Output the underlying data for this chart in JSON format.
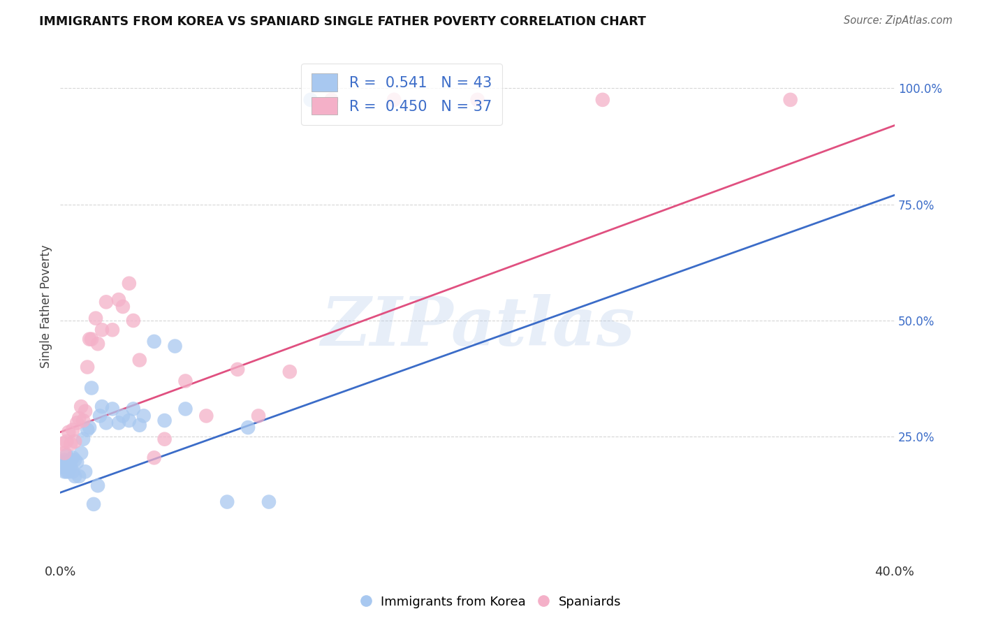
{
  "title": "IMMIGRANTS FROM KOREA VS SPANIARD SINGLE FATHER POVERTY CORRELATION CHART",
  "source": "Source: ZipAtlas.com",
  "ylabel": "Single Father Poverty",
  "xlim": [
    0.0,
    0.4
  ],
  "ylim": [
    -0.02,
    1.08
  ],
  "blue_R": "0.541",
  "blue_N": "43",
  "pink_R": "0.450",
  "pink_N": "37",
  "blue_color": "#A8C8F0",
  "pink_color": "#F4B0C8",
  "blue_line_color": "#3B6CC8",
  "pink_line_color": "#E05080",
  "background_color": "#ffffff",
  "grid_color": "#cccccc",
  "watermark": "ZIPatlas",
  "legend_label_blue": "Immigrants from Korea",
  "legend_label_pink": "Spaniards",
  "korea_x": [
    0.001,
    0.001,
    0.002,
    0.002,
    0.003,
    0.003,
    0.003,
    0.004,
    0.004,
    0.005,
    0.005,
    0.006,
    0.006,
    0.007,
    0.007,
    0.008,
    0.009,
    0.01,
    0.011,
    0.012,
    0.013,
    0.014,
    0.015,
    0.016,
    0.018,
    0.019,
    0.02,
    0.022,
    0.025,
    0.028,
    0.03,
    0.033,
    0.035,
    0.038,
    0.04,
    0.045,
    0.05,
    0.055,
    0.06,
    0.08,
    0.09,
    0.1,
    0.12
  ],
  "korea_y": [
    0.195,
    0.185,
    0.2,
    0.175,
    0.21,
    0.195,
    0.175,
    0.195,
    0.175,
    0.185,
    0.2,
    0.205,
    0.175,
    0.2,
    0.165,
    0.195,
    0.165,
    0.215,
    0.245,
    0.175,
    0.265,
    0.27,
    0.355,
    0.105,
    0.145,
    0.295,
    0.315,
    0.28,
    0.31,
    0.28,
    0.295,
    0.285,
    0.31,
    0.275,
    0.295,
    0.455,
    0.285,
    0.445,
    0.31,
    0.11,
    0.27,
    0.11,
    0.975
  ],
  "spaniard_x": [
    0.001,
    0.002,
    0.003,
    0.004,
    0.005,
    0.006,
    0.007,
    0.008,
    0.009,
    0.01,
    0.011,
    0.012,
    0.013,
    0.014,
    0.015,
    0.017,
    0.018,
    0.02,
    0.022,
    0.025,
    0.028,
    0.03,
    0.033,
    0.035,
    0.038,
    0.045,
    0.05,
    0.06,
    0.07,
    0.085,
    0.095,
    0.11,
    0.13,
    0.16,
    0.2,
    0.26,
    0.35
  ],
  "spaniard_y": [
    0.235,
    0.215,
    0.24,
    0.26,
    0.235,
    0.265,
    0.24,
    0.28,
    0.29,
    0.315,
    0.285,
    0.305,
    0.4,
    0.46,
    0.46,
    0.505,
    0.45,
    0.48,
    0.54,
    0.48,
    0.545,
    0.53,
    0.58,
    0.5,
    0.415,
    0.205,
    0.245,
    0.37,
    0.295,
    0.395,
    0.295,
    0.39,
    0.975,
    0.975,
    0.975,
    0.975,
    0.975
  ],
  "blue_line_x0": 0.0,
  "blue_line_y0": 0.13,
  "blue_line_x1": 0.4,
  "blue_line_y1": 0.77,
  "pink_line_x0": 0.0,
  "pink_line_y0": 0.26,
  "pink_line_x1": 0.4,
  "pink_line_y1": 0.92
}
